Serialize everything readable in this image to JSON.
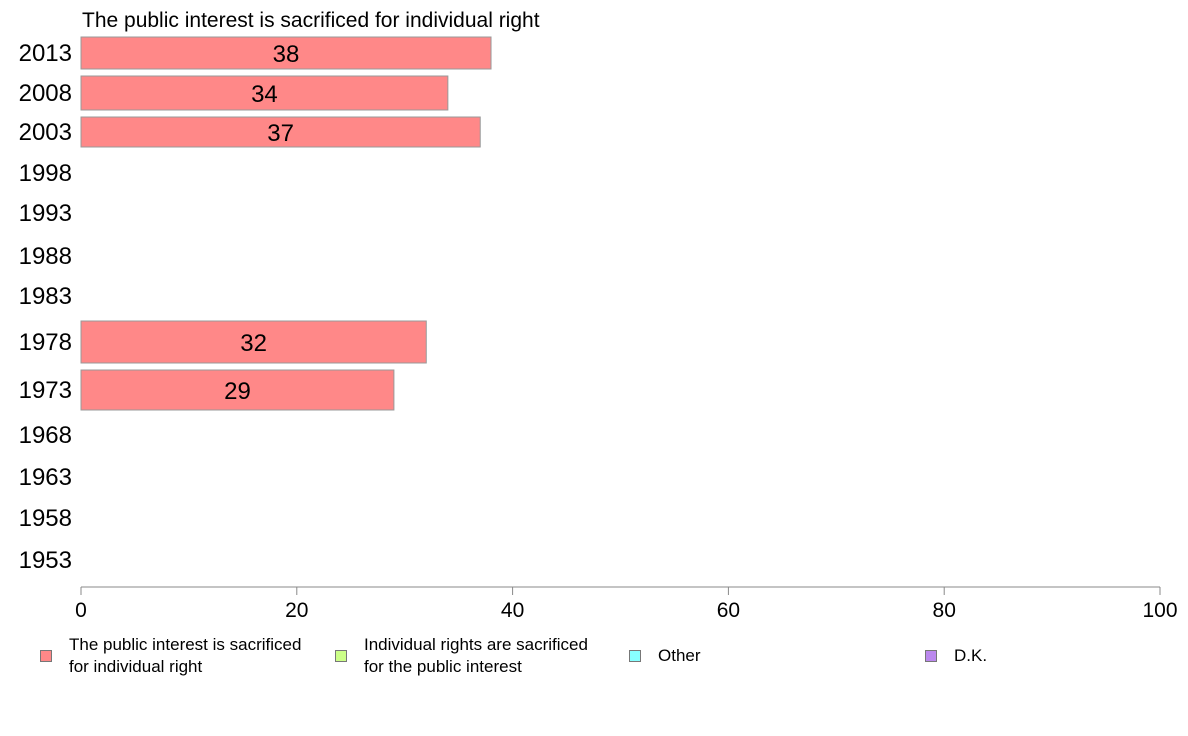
{
  "chart_data": {
    "type": "bar",
    "orientation": "horizontal",
    "title": "The public interest is sacrificed for individual right",
    "categories": [
      "2013",
      "2008",
      "2003",
      "1998",
      "1993",
      "1988",
      "1983",
      "1978",
      "1973",
      "1968",
      "1963",
      "1958",
      "1953"
    ],
    "series": [
      {
        "name": "The public interest is sacrificed\nfor individual right",
        "color": "#ff8888",
        "values": [
          38,
          34,
          37,
          null,
          null,
          null,
          null,
          32,
          29,
          null,
          null,
          null,
          null
        ],
        "labels": [
          "38",
          "34",
          "37",
          "",
          "",
          "",
          "",
          "32",
          "29",
          "",
          "",
          "",
          ""
        ]
      }
    ],
    "xlim": [
      0,
      100
    ],
    "xticks": [
      "0",
      "20",
      "40",
      "60",
      "80",
      "100"
    ],
    "grid": false,
    "legend_position": "bottom",
    "legend": [
      {
        "label": "The public interest is sacrificed\nfor individual right",
        "color": "#ff8888"
      },
      {
        "label": "Individual rights are sacrificed\nfor the public interest",
        "color": "#ccff88"
      },
      {
        "label": "Other",
        "color": "#88ffff"
      },
      {
        "label": "D.K.",
        "color": "#bb88ee"
      }
    ]
  }
}
